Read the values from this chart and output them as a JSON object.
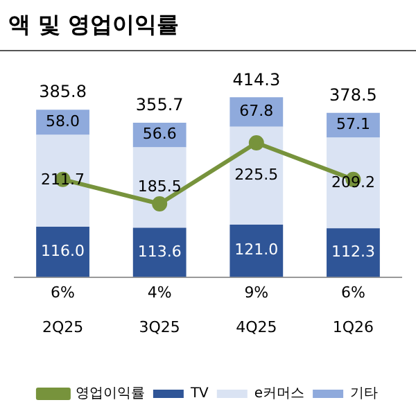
{
  "chart_data": {
    "type": "bar",
    "title": "액 및 영업이익률",
    "categories": [
      "2Q25",
      "3Q25",
      "4Q25",
      "1Q26"
    ],
    "stacked": true,
    "legend": "bottom",
    "grid": false,
    "series": [
      {
        "name": "TV",
        "color": "#2f5597",
        "values": [
          116.0,
          113.6,
          121.0,
          112.3
        ],
        "value_labels": [
          "116.0",
          "113.6",
          "121.0",
          "112.3"
        ]
      },
      {
        "name": "e커머스",
        "color": "#dae3f3",
        "values": [
          211.7,
          185.5,
          225.5,
          209.2
        ],
        "value_labels": [
          "211.7",
          "185.5",
          "225.5",
          "209.2"
        ]
      },
      {
        "name": "기타",
        "color": "#8faadc",
        "values": [
          58.0,
          56.6,
          67.8,
          57.1
        ],
        "value_labels": [
          "58.0",
          "56.6",
          "67.8",
          "57.1"
        ]
      },
      {
        "name": "영업이익률",
        "type": "line",
        "axis": "y2",
        "color": "#77933c",
        "marker": "circle",
        "values": [
          6,
          4,
          9,
          6
        ],
        "value_labels": [
          "6%",
          "4%",
          "9%",
          "6%"
        ]
      }
    ],
    "totals": [
      "385.8",
      "355.7",
      "414.3",
      "378.5"
    ]
  }
}
